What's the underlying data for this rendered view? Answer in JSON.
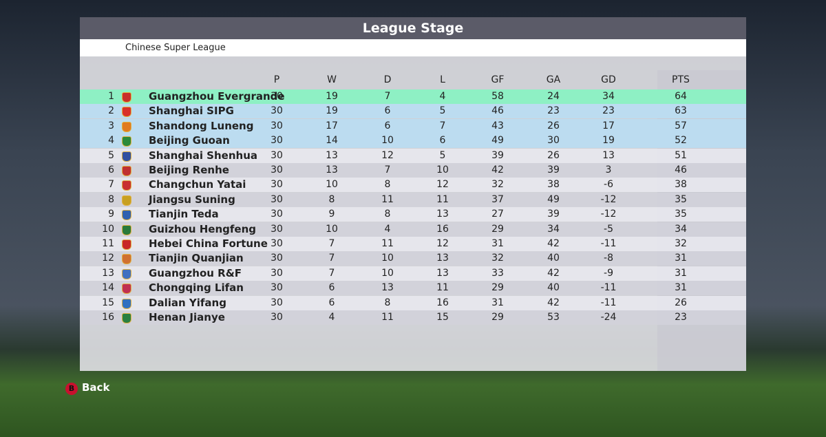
{
  "header": {
    "title": "League Stage",
    "subtitle": "Chinese Super League"
  },
  "table": {
    "columns": [
      "P",
      "W",
      "D",
      "L",
      "GF",
      "GA",
      "GD",
      "PTS"
    ],
    "rows": [
      {
        "pos": 1,
        "team": "Guangzhou Evergrande",
        "stats": [
          30,
          19,
          7,
          4,
          58,
          24,
          34,
          64
        ]
      },
      {
        "pos": 2,
        "team": "Shanghai SIPG",
        "stats": [
          30,
          19,
          6,
          5,
          46,
          23,
          23,
          63
        ]
      },
      {
        "pos": 3,
        "team": "Shandong Luneng",
        "stats": [
          30,
          17,
          6,
          7,
          43,
          26,
          17,
          57
        ]
      },
      {
        "pos": 4,
        "team": "Beijing Guoan",
        "stats": [
          30,
          14,
          10,
          6,
          49,
          30,
          19,
          52
        ]
      },
      {
        "pos": 5,
        "team": "Shanghai Shenhua",
        "stats": [
          30,
          13,
          12,
          5,
          39,
          26,
          13,
          51
        ]
      },
      {
        "pos": 6,
        "team": "Beijing Renhe",
        "stats": [
          30,
          13,
          7,
          10,
          42,
          39,
          3,
          46
        ]
      },
      {
        "pos": 7,
        "team": "Changchun Yatai",
        "stats": [
          30,
          10,
          8,
          12,
          32,
          38,
          -6,
          38
        ]
      },
      {
        "pos": 8,
        "team": "Jiangsu Suning",
        "stats": [
          30,
          8,
          11,
          11,
          37,
          49,
          -12,
          35
        ]
      },
      {
        "pos": 9,
        "team": "Tianjin Teda",
        "stats": [
          30,
          9,
          8,
          13,
          27,
          39,
          -12,
          35
        ]
      },
      {
        "pos": 10,
        "team": "Guizhou Hengfeng",
        "stats": [
          30,
          10,
          4,
          16,
          29,
          34,
          -5,
          34
        ]
      },
      {
        "pos": 11,
        "team": "Hebei China Fortune",
        "stats": [
          30,
          7,
          11,
          12,
          31,
          42,
          -11,
          32
        ]
      },
      {
        "pos": 12,
        "team": "Tianjin Quanjian",
        "stats": [
          30,
          7,
          10,
          13,
          32,
          40,
          -8,
          31
        ]
      },
      {
        "pos": 13,
        "team": "Guangzhou R&F",
        "stats": [
          30,
          7,
          10,
          13,
          33,
          42,
          -9,
          31
        ]
      },
      {
        "pos": 14,
        "team": "Chongqing Lifan",
        "stats": [
          30,
          6,
          13,
          11,
          29,
          40,
          -11,
          31
        ]
      },
      {
        "pos": 15,
        "team": "Dalian Yifang",
        "stats": [
          30,
          6,
          8,
          16,
          31,
          42,
          -11,
          26
        ]
      },
      {
        "pos": 16,
        "team": "Henan Jianye",
        "stats": [
          30,
          4,
          11,
          15,
          29,
          53,
          -24,
          23
        ]
      }
    ]
  },
  "footer": {
    "button": "B",
    "label": "Back"
  }
}
